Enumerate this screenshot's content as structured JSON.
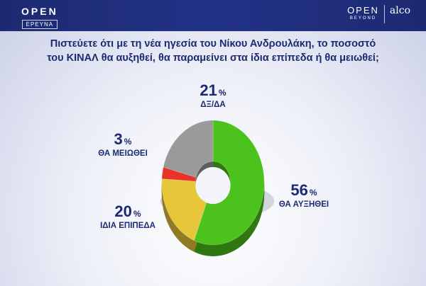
{
  "header": {
    "left_logo": "OPEN",
    "left_sub": "ΕΡΕΥΝΑ",
    "right_logo": "OPEN",
    "right_sub": "BEYOND",
    "partner_logo": "alco"
  },
  "question": {
    "line1": "Πιστεύετε ότι  με τη νέα ηγεσία του Νίκου Ανδρουλάκη, το ποσοστό",
    "line2": "του ΚΙΝΑΛ θα αυξηθεί, θα παραμείνει στα ίδια επίπεδα ή θα μειωθεί;"
  },
  "chart_data": {
    "type": "pie",
    "subtype": "3d-donut",
    "categories": [
      "ΘΑ ΑΥΞΗΘΕΙ",
      "ΙΔΙΑ ΕΠΙΠΕΔΑ",
      "ΘΑ ΜΕΙΩΘΕΙ",
      "ΔΞ/ΔΑ"
    ],
    "values": [
      56,
      20,
      3,
      21
    ],
    "unit": "%",
    "colors": [
      "#4cc21c",
      "#e8c63a",
      "#e8322a",
      "#9a9a9a"
    ]
  }
}
